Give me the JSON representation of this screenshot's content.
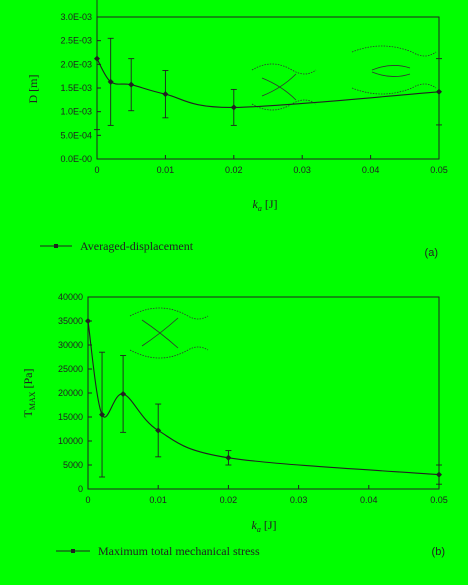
{
  "chart_data": [
    {
      "type": "line",
      "panel_tag": "(a)",
      "ylabel": "D [m]",
      "xlabel_symbol": "k",
      "xlabel_sub": "a",
      "xlabel_unit": "[J]",
      "x_ticks": [
        "0",
        "0.01",
        "0.02",
        "0.03",
        "0.04",
        "0.05"
      ],
      "y_ticks": [
        "0.0E-00",
        "5.0E-04",
        "1.0E-03",
        "1.5E-03",
        "2.0E-03",
        "2.5E-03",
        "3.0E-03"
      ],
      "xlim": [
        0,
        0.05
      ],
      "ylim": [
        0,
        0.003
      ],
      "legend": "Averaged-displacement",
      "legend_position": "bottom-left",
      "series": [
        {
          "name": "Averaged-displacement",
          "x": [
            0,
            0.002,
            0.005,
            0.01,
            0.02,
            0.05
          ],
          "y": [
            0.00212,
            0.00163,
            0.00157,
            0.00137,
            0.00109,
            0.00142
          ],
          "err": [
            0.0015,
            0.00092,
            0.00055,
            0.0005,
            0.00038,
            0.0007
          ]
        }
      ],
      "grid": false
    },
    {
      "type": "line",
      "panel_tag": "(b)",
      "ylabel_symbol": "T",
      "ylabel_sub": "MAX",
      "ylabel_unit": "[Pa]",
      "xlabel_symbol": "k",
      "xlabel_sub": "a",
      "xlabel_unit": "[J]",
      "x_ticks": [
        "0",
        "0.01",
        "0.02",
        "0.03",
        "0.04",
        "0.05"
      ],
      "y_ticks": [
        "0",
        "5000",
        "10000",
        "15000",
        "20000",
        "25000",
        "30000",
        "35000",
        "40000"
      ],
      "xlim": [
        0,
        0.05
      ],
      "ylim": [
        0,
        40000
      ],
      "legend": "Maximum total mechanical stress",
      "legend_position": "bottom-left",
      "series": [
        {
          "name": "Maximum total mechanical stress",
          "x": [
            0,
            0.002,
            0.005,
            0.01,
            0.02,
            0.05
          ],
          "y": [
            35000,
            15500,
            19800,
            12200,
            6500,
            3000
          ],
          "err": [
            0,
            13000,
            8000,
            5500,
            1500,
            2000
          ]
        }
      ],
      "grid": false
    }
  ],
  "colors": {
    "background": "#00ff00",
    "ink": "#1a1a1a"
  }
}
